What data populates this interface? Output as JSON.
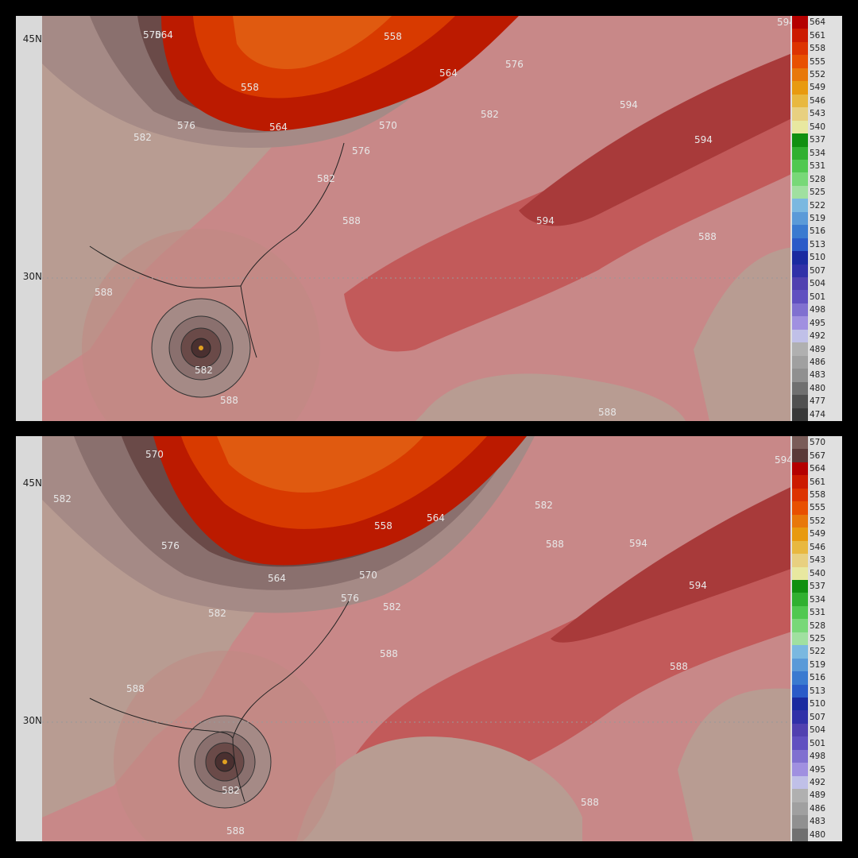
{
  "panels": [
    {
      "id": "top",
      "lat_labels": [
        "45N",
        "30N"
      ],
      "colorbar_levels": [
        "564",
        "561",
        "558",
        "555",
        "552",
        "549",
        "546",
        "543",
        "540",
        "537",
        "534",
        "531",
        "528",
        "525",
        "522",
        "519",
        "516",
        "513",
        "510",
        "507",
        "504",
        "501",
        "498",
        "495",
        "492",
        "489",
        "486",
        "483",
        "480",
        "477",
        "474"
      ],
      "colorbar_colors": [
        "#b40000",
        "#cc1a00",
        "#dd3300",
        "#e85000",
        "#e8780a",
        "#e89a10",
        "#e8b840",
        "#e8d080",
        "#e8e8a0",
        "#109010",
        "#30b030",
        "#50c850",
        "#78d878",
        "#a0e0a0",
        "#7ab8e0",
        "#5a9ad8",
        "#3a7ad0",
        "#2a5ac8",
        "#1a2aa0",
        "#3030a8",
        "#5040b0",
        "#6050c0",
        "#8070d0",
        "#a090e0",
        "#c0c0e8",
        "#b0b0b0",
        "#a0a0a0",
        "#909090",
        "#707070",
        "#505050",
        "#383838"
      ],
      "contour_labels": [
        {
          "text": "564"
        },
        {
          "text": "570"
        },
        {
          "text": "558"
        },
        {
          "text": "594"
        },
        {
          "text": "576"
        },
        {
          "text": "564"
        },
        {
          "text": "558"
        },
        {
          "text": "594"
        },
        {
          "text": "576"
        },
        {
          "text": "582"
        },
        {
          "text": "564"
        },
        {
          "text": "570"
        },
        {
          "text": "594"
        },
        {
          "text": "582"
        },
        {
          "text": "576"
        },
        {
          "text": "582"
        },
        {
          "text": "594"
        },
        {
          "text": "588"
        },
        {
          "text": "588"
        },
        {
          "text": "588"
        },
        {
          "text": "582"
        },
        {
          "text": "588"
        },
        {
          "text": "588"
        }
      ],
      "storm_center": "Gulf of Mexico west of Florida"
    },
    {
      "id": "bottom",
      "lat_labels": [
        "45N",
        "30N"
      ],
      "colorbar_levels": [
        "570",
        "567",
        "564",
        "561",
        "558",
        "555",
        "552",
        "549",
        "546",
        "543",
        "540",
        "537",
        "534",
        "531",
        "528",
        "525",
        "522",
        "519",
        "516",
        "513",
        "510",
        "507",
        "504",
        "501",
        "498",
        "495",
        "492",
        "489",
        "486",
        "483",
        "480"
      ],
      "colorbar_colors": [
        "#7a5c58",
        "#5a3a38",
        "#b40000",
        "#cc1a00",
        "#dd3300",
        "#e85000",
        "#e8780a",
        "#e89a10",
        "#e8b840",
        "#e8d080",
        "#e8e8a0",
        "#109010",
        "#30b030",
        "#50c850",
        "#78d878",
        "#a0e0a0",
        "#7ab8e0",
        "#5a9ad8",
        "#3a7ad0",
        "#2a5ac8",
        "#1a2aa0",
        "#3030a8",
        "#5040b0",
        "#6050c0",
        "#8070d0",
        "#a090e0",
        "#c0c0e8",
        "#b0b0b0",
        "#a0a0a0",
        "#909090",
        "#707070"
      ],
      "contour_labels": [
        {
          "text": "570"
        },
        {
          "text": "582"
        },
        {
          "text": "594"
        },
        {
          "text": "582"
        },
        {
          "text": "558"
        },
        {
          "text": "564"
        },
        {
          "text": "588"
        },
        {
          "text": "576"
        },
        {
          "text": "594"
        },
        {
          "text": "564"
        },
        {
          "text": "570"
        },
        {
          "text": "594"
        },
        {
          "text": "576"
        },
        {
          "text": "582"
        },
        {
          "text": "582"
        },
        {
          "text": "588"
        },
        {
          "text": "588"
        },
        {
          "text": "588"
        },
        {
          "text": "582"
        },
        {
          "text": "588"
        },
        {
          "text": "588"
        }
      ],
      "storm_center": "Florida west coast"
    }
  ],
  "colors": {
    "background": "#000000",
    "ridge_594": "#a83a3a",
    "band_588": "#c25a5a",
    "band_pink": "#d08888",
    "land_tan": "#b89c92",
    "trough_red": "#cc2a00",
    "trough_orange": "#dd4a00"
  }
}
